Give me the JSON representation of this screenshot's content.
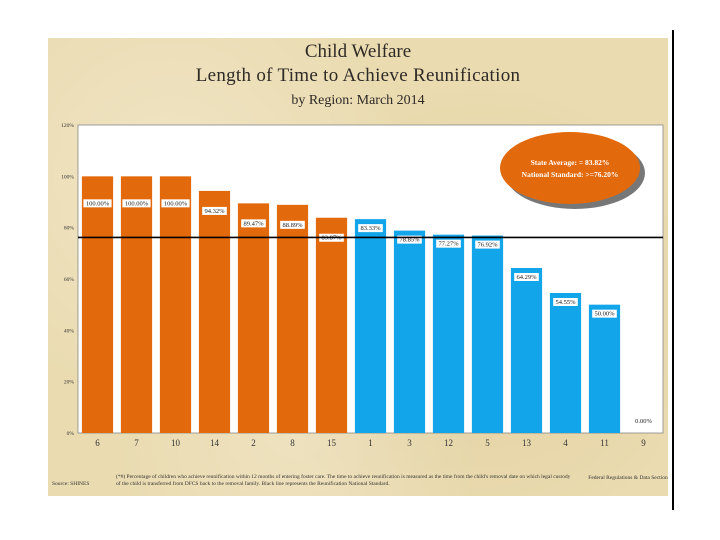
{
  "title_line1": "Child Welfare",
  "title_line2": "Length of Time to Achieve Reunification",
  "title_line3": "by Region: March 2014",
  "legend": {
    "line1": "State Average: = 83.82%",
    "line2": "National Standard: >=76.20%"
  },
  "footer": {
    "source": "Source: SHINES",
    "note": "(*#) Percentage of children who achieve reunification within 12 months of entering foster care. The time to achieve reunification is measured as the time from the child's removal date on which legal custody of the child is transferred from DFCS back to the removal family. Black line represents the Reunification National Standard.",
    "section": "Federal Regulations & Data Section"
  },
  "colors": {
    "above": "#e36a0c",
    "below": "#12a5ea",
    "line": "#000000",
    "oval": "#e36a0c"
  },
  "chart_data": {
    "type": "bar",
    "title": "Child Welfare Length of Time to Achieve Reunification by Region: March 2014",
    "xlabel": "",
    "ylabel": "",
    "ylim": [
      0,
      120
    ],
    "yticks": [
      "0%",
      "20%",
      "40%",
      "60%",
      "80%",
      "100%",
      "120%"
    ],
    "reference_line": {
      "label": "National Standard",
      "value": 76.2
    },
    "categories": [
      "6",
      "7",
      "10",
      "14",
      "2",
      "8",
      "15",
      "1",
      "3",
      "12",
      "5",
      "13",
      "4",
      "11",
      "9"
    ],
    "values": [
      100.0,
      100.0,
      100.0,
      94.32,
      89.47,
      88.89,
      83.87,
      83.33,
      78.85,
      77.27,
      76.92,
      64.29,
      54.55,
      50.0,
      0.0
    ],
    "labels": [
      "100.00%",
      "100.00%",
      "100.00%",
      "94.32%",
      "89.47%",
      "88.89%",
      "83.87%",
      "83.33%",
      "78.85%",
      "77.27%",
      "76.92%",
      "64.29%",
      "54.55%",
      "50.00%",
      "0.00%"
    ],
    "group": [
      "above",
      "above",
      "above",
      "above",
      "above",
      "above",
      "above",
      "below",
      "below",
      "below",
      "below",
      "below",
      "below",
      "below",
      "below"
    ]
  }
}
